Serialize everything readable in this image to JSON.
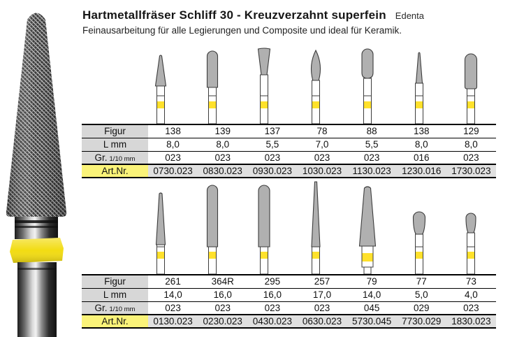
{
  "header": {
    "title": "Hartmetallfräser Schliff 30 - Kreuzverzahnt superfein",
    "brand": "Edenta",
    "subtitle": "Feinausarbeitung für alle Legierungen und Composite und ideal für Keramik."
  },
  "table_labels": {
    "figur": "Figur",
    "l_mm": "L mm",
    "gr_prefix": "Gr.",
    "gr_unit": "1/10 mm",
    "artnr": "Art.Nr."
  },
  "colors": {
    "band_yellow": "#FFE12B",
    "photo_band_yellow": "#F2DC13",
    "head_gray": "#B0B0B0",
    "outline": "#3C3C3C",
    "label_gray_bg": "#D7D7D7",
    "artnr_label_bg": "#FAF379",
    "artnr_row_bg": "#E0E0E0"
  },
  "groups": [
    {
      "name": "upper",
      "columns": [
        {
          "shape": "taper",
          "figur": "138",
          "l_mm": "8,0",
          "gr": "023",
          "artnr": "0730.023"
        },
        {
          "shape": "torpedo",
          "figur": "139",
          "l_mm": "8,0",
          "gr": "023",
          "artnr": "0830.023"
        },
        {
          "shape": "inverted-taper",
          "figur": "137",
          "l_mm": "5,5",
          "gr": "023",
          "artnr": "0930.023"
        },
        {
          "shape": "flame",
          "figur": "78",
          "l_mm": "7,0",
          "gr": "023",
          "artnr": "1030.023"
        },
        {
          "shape": "egg",
          "figur": "88",
          "l_mm": "5,5",
          "gr": "023",
          "artnr": "1130.023"
        },
        {
          "shape": "needle-taper",
          "figur": "138",
          "l_mm": "8,0",
          "gr": "016",
          "artnr": "1230.016"
        },
        {
          "shape": "round-cylinder",
          "figur": "129",
          "l_mm": "8,0",
          "gr": "023",
          "artnr": "1730.023"
        }
      ]
    },
    {
      "name": "lower",
      "columns": [
        {
          "shape": "long-taper",
          "figur": "261",
          "l_mm": "14,0",
          "gr": "023",
          "artnr": "0130.023"
        },
        {
          "shape": "long-torpedo",
          "figur": "364R",
          "l_mm": "16,0",
          "gr": "023",
          "artnr": "0230.023"
        },
        {
          "shape": "long-torpedo-wide",
          "figur": "295",
          "l_mm": "16,0",
          "gr": "023",
          "artnr": "0430.023"
        },
        {
          "shape": "long-needle",
          "figur": "257",
          "l_mm": "17,0",
          "gr": "023",
          "artnr": "0630.023"
        },
        {
          "shape": "large-cone",
          "figur": "79",
          "l_mm": "14,0",
          "gr": "045",
          "artnr": "5730.045"
        },
        {
          "shape": "bud",
          "figur": "77",
          "l_mm": "5,0",
          "gr": "029",
          "artnr": "7730.029"
        },
        {
          "shape": "small-bud",
          "figur": "73",
          "l_mm": "4,0",
          "gr": "023",
          "artnr": "1830.023"
        }
      ]
    }
  ]
}
